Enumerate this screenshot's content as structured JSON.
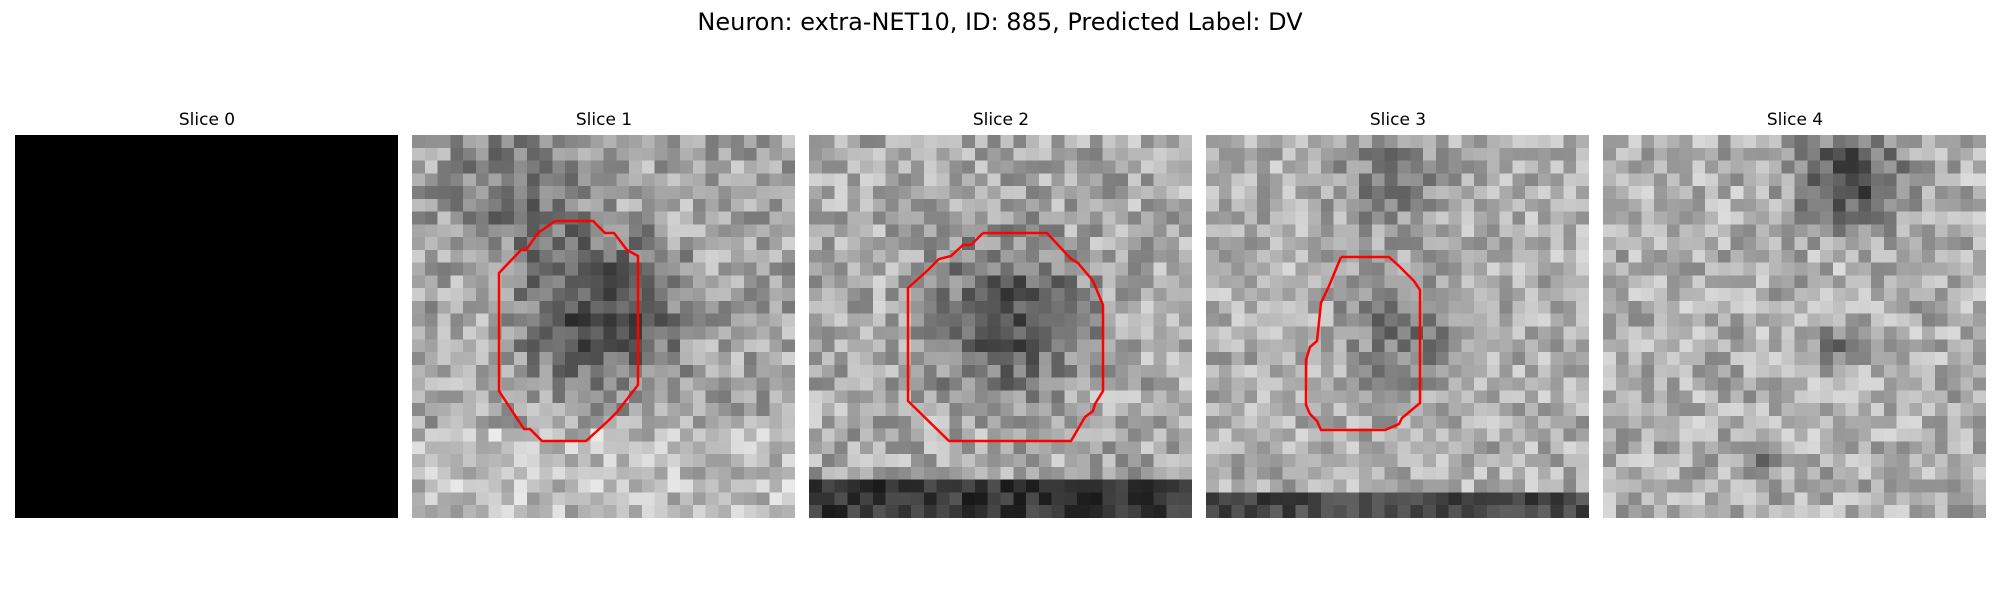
{
  "title": "Neuron: extra-NET10, ID: 885, Predicted Label: DV",
  "contour_color": "#ff0000",
  "slices": [
    {
      "label": "Slice 0",
      "has_contour": false
    },
    {
      "label": "Slice 1",
      "has_contour": true
    },
    {
      "label": "Slice 2",
      "has_contour": true
    },
    {
      "label": "Slice 3",
      "has_contour": true
    },
    {
      "label": "Slice 4",
      "has_contour": false
    }
  ]
}
